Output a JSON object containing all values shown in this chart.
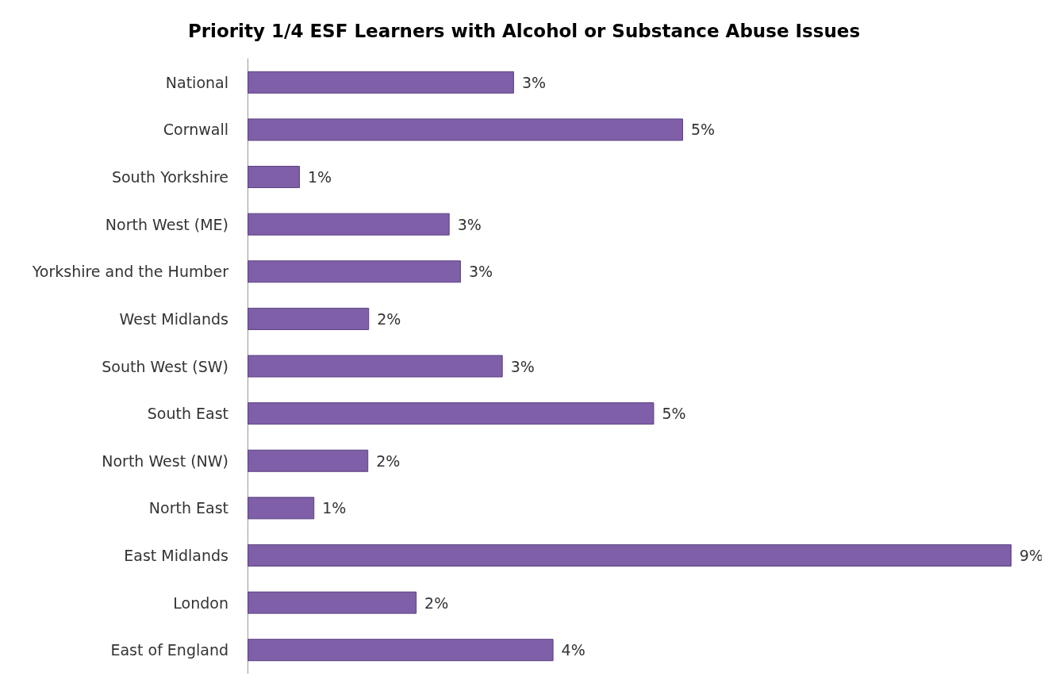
{
  "chart_data": {
    "type": "bar",
    "orientation": "horizontal",
    "title": "Priority 1/4 ESF Learners with Alcohol or Substance Abuse Issues",
    "categories": [
      "National",
      "Cornwall",
      "South Yorkshire",
      "North West (ME)",
      "Yorkshire and the Humber",
      "West Midlands",
      "South West (SW)",
      "South East",
      "North West (NW)",
      "North East",
      "East Midlands",
      "London",
      "East of England"
    ],
    "values": [
      3.31,
      5.41,
      0.65,
      2.51,
      2.65,
      1.51,
      3.17,
      5.05,
      1.5,
      0.83,
      9.49,
      2.1,
      3.8
    ],
    "value_labels": [
      "3%",
      "5%",
      "1%",
      "3%",
      "3%",
      "2%",
      "3%",
      "5%",
      "2%",
      "1%",
      "9%",
      "2%",
      "4%"
    ],
    "color": "#7e5fa8",
    "grid": false,
    "tick_labels": "y"
  }
}
